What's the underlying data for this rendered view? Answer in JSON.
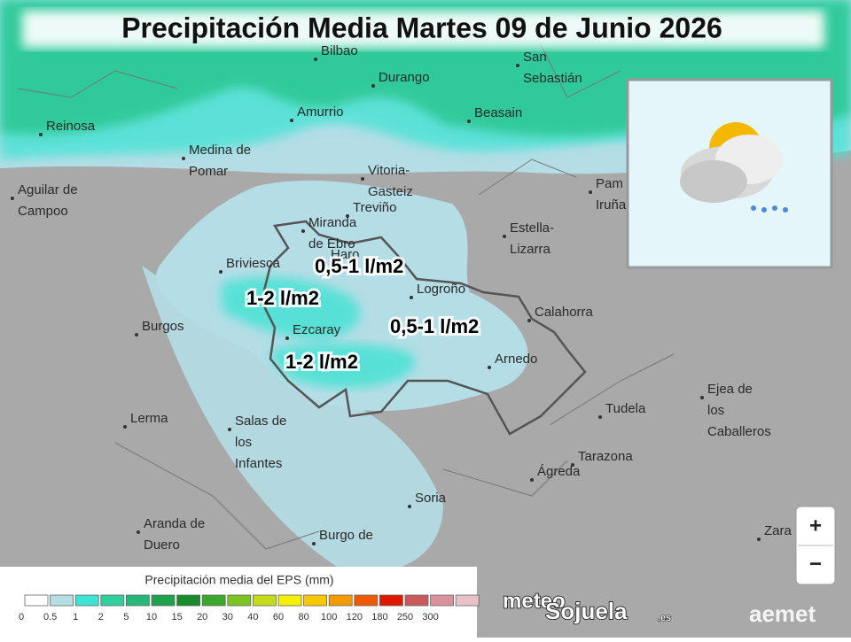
{
  "title": "Precipitación Media Martes 09 de Junio 2026",
  "places": [
    [
      "Bilbao"
    ],
    [
      "Durango"
    ],
    [
      "San",
      "Sebastián"
    ],
    [
      "Reinosa"
    ],
    [
      "Amurrio"
    ],
    [
      "Beasain"
    ],
    [
      "Medina de",
      "Pomar"
    ],
    [
      "Vitoria-",
      "Gasteiz"
    ],
    [
      "Aguilar de",
      "Campoo"
    ],
    [
      "Treviño"
    ],
    [
      "Miranda",
      "de Ebro"
    ],
    [
      "Haro"
    ],
    [
      "Estella-",
      "Lizarra"
    ],
    [
      "Pam",
      "Iruña"
    ],
    [
      "Briviesca"
    ],
    [
      "Logroño"
    ],
    [
      "Burgos"
    ],
    [
      "Ezcaray"
    ],
    [
      "Calahorra"
    ],
    [
      "Arnedo"
    ],
    [
      "Ejea de",
      "los",
      "Caballeros"
    ],
    [
      "Tudela"
    ],
    [
      "Lerma"
    ],
    [
      "Salas de",
      "los",
      "Infantes"
    ],
    [
      "Tarazona"
    ],
    [
      "Ágreda"
    ],
    [
      "Soria"
    ],
    [
      "Aranda de",
      "Duero"
    ],
    [
      "Zara"
    ],
    [
      "Burgo de"
    ]
  ],
  "rain_labels": [
    "0,5-1 l/m2",
    "1-2 l/m2",
    "0,5-1 l/m2",
    "1-2 l/m2"
  ],
  "legend": {
    "title": "Precipitación media del EPS (mm)",
    "ticks": [
      0,
      0.5,
      1,
      2,
      5,
      10,
      15,
      20,
      30,
      40,
      60,
      80,
      100,
      120,
      180,
      250,
      300
    ],
    "colors": [
      "#ffffff",
      "#b4dde6",
      "#3fe3d3",
      "#2fcf9e",
      "#25b878",
      "#1ea04d",
      "#188a2c",
      "#3aa82a",
      "#7cc421",
      "#c2dc1c",
      "#f4f000",
      "#f5c800",
      "#f39a00",
      "#ee5a00",
      "#e01800",
      "#c85a5e",
      "#d8949a",
      "#e8c2c6"
    ]
  },
  "zoom": {
    "in": "+",
    "out": "−"
  },
  "logos": {
    "meteo": "meteo",
    "sojuela": "Sojuela",
    "es": ".es",
    "aemet": "aemet"
  }
}
